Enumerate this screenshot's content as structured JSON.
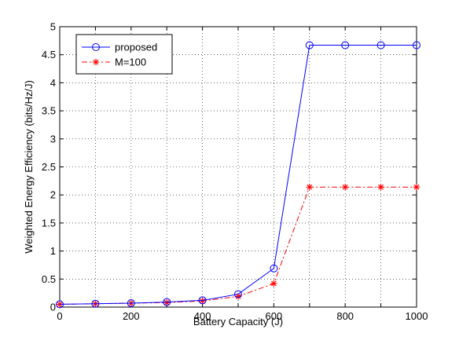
{
  "chart_data": {
    "type": "line",
    "title": "",
    "xlabel": "Battery Capacity (J)",
    "ylabel": "Weighted Energy Efficiency (bits/Hz/J)",
    "xlim": [
      0,
      1000
    ],
    "ylim": [
      0,
      5
    ],
    "x_ticks": [
      "0",
      "200",
      "400",
      "600",
      "800",
      "1000"
    ],
    "y_ticks": [
      "0",
      "0.5",
      "1",
      "1.5",
      "2",
      "2.5",
      "3",
      "3.5",
      "4",
      "4.5",
      "5"
    ],
    "grid": true,
    "legend_position": "top-left",
    "x": [
      0,
      100,
      200,
      300,
      400,
      500,
      600,
      700,
      800,
      900,
      1000
    ],
    "series": [
      {
        "name": "proposed",
        "color": "#0000ff",
        "marker": "circle",
        "line_style": "solid",
        "values": [
          0.05,
          0.06,
          0.07,
          0.09,
          0.12,
          0.23,
          0.69,
          4.67,
          4.67,
          4.67,
          4.67
        ]
      },
      {
        "name": "M=100",
        "color": "#ff0000",
        "marker": "asterisk",
        "line_style": "dash-dot",
        "values": [
          0.05,
          0.06,
          0.07,
          0.08,
          0.11,
          0.19,
          0.42,
          2.14,
          2.14,
          2.14,
          2.14
        ]
      }
    ]
  }
}
